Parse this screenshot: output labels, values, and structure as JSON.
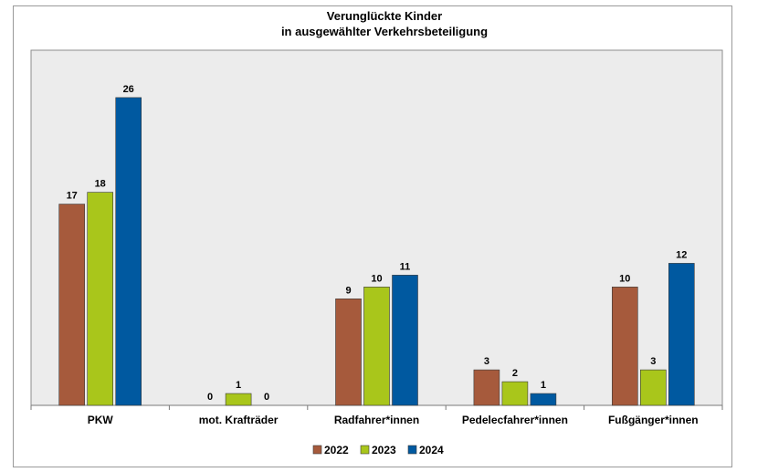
{
  "chart_data": {
    "type": "bar",
    "title": [
      "Verunglückte Kinder",
      "in ausgewählter Verkehrsbeteiligung"
    ],
    "categories": [
      "PKW",
      "mot. Krafträder",
      "Radfahrer*innen",
      "Pedelecfahrer*innen",
      "Fußgänger*innen"
    ],
    "series": [
      {
        "name": "2022",
        "color": "#A65A3C",
        "values": [
          17,
          0,
          9,
          3,
          10
        ]
      },
      {
        "name": "2023",
        "color": "#A9C61B",
        "values": [
          18,
          1,
          10,
          2,
          3
        ]
      },
      {
        "name": "2024",
        "color": "#0059A0",
        "values": [
          26,
          0,
          11,
          1,
          12
        ]
      }
    ],
    "ylim": [
      0,
      30
    ],
    "legend_position": "bottom",
    "grid": false,
    "plot_background": "#ececec"
  }
}
